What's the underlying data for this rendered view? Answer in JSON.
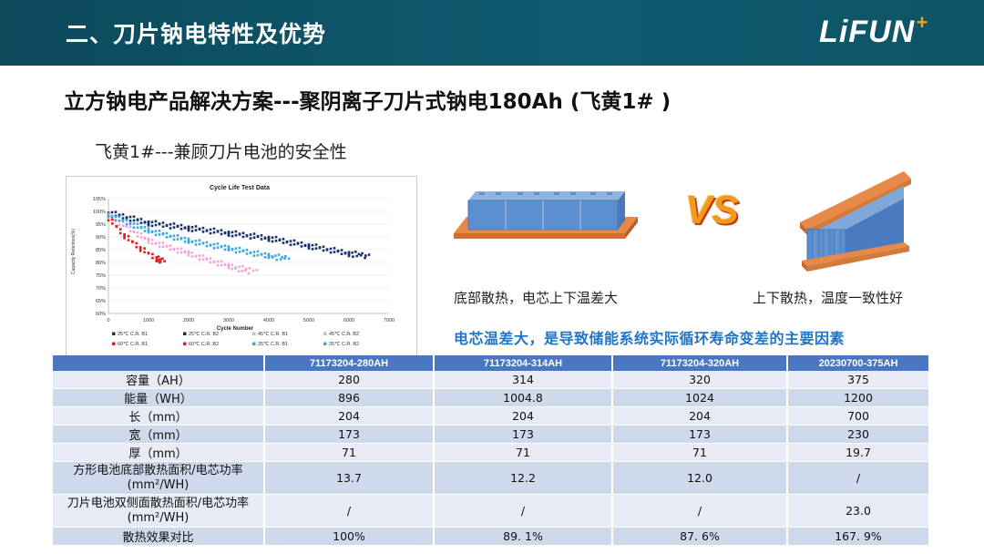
{
  "header": {
    "title": "二、刀片钠电特性及优势",
    "logo_text": "LiFUN",
    "logo_plus": "+"
  },
  "main_title": "立方钠电产品解决方案---聚阴离子刀片式钠电180Ah (飞黄1# )",
  "subtitle": "飞黄1#---兼顾刀片电池的安全性",
  "chart_data": {
    "type": "scatter",
    "title": "Cycle Life Test Data",
    "xlabel": "Cycle Number",
    "ylabel": "Capacity Retention(%)",
    "xlim": [
      0,
      7000
    ],
    "ylim": [
      60,
      105
    ],
    "xticks": [
      "0",
      "1000",
      "2000",
      "3000",
      "4000",
      "5000",
      "6000",
      "7000"
    ],
    "yticks": [
      "105%",
      "100%",
      "95%",
      "90%",
      "85%",
      "80%",
      "75%",
      "70%",
      "65%",
      "60%"
    ],
    "legend_position": "bottom",
    "series": [
      {
        "name": "25℃ C.R. B1",
        "color": "#1b2f6b",
        "x": [
          0,
          1000,
          2000,
          3000,
          4000,
          5000,
          6000,
          6500
        ],
        "y": [
          100,
          96,
          94,
          92,
          90,
          87,
          84,
          83
        ]
      },
      {
        "name": "25℃ C.R. B2",
        "color": "#1b2f6b",
        "x": [
          0,
          1000,
          2000,
          3000,
          4000,
          5000,
          6000,
          6400
        ],
        "y": [
          99,
          95,
          93,
          91,
          89,
          86,
          83,
          82
        ]
      },
      {
        "name": "45℃ C.R. B1",
        "color": "#f2a6d2",
        "x": [
          0,
          1000,
          2000,
          3000,
          3700
        ],
        "y": [
          99,
          89,
          84,
          79,
          77
        ]
      },
      {
        "name": "45℃ C.R. B2",
        "color": "#f2a6d2",
        "x": [
          0,
          1000,
          2000,
          3000,
          3500
        ],
        "y": [
          98,
          88,
          83,
          78,
          76
        ]
      },
      {
        "name": "60℃ C.R. B1",
        "color": "#e21d1d",
        "x": [
          0,
          400,
          800,
          1200,
          1400
        ],
        "y": [
          98,
          91,
          86,
          82,
          81
        ]
      },
      {
        "name": "60℃ C.R. B2",
        "color": "#e21d1d",
        "x": [
          0,
          400,
          800,
          1200,
          1300
        ],
        "y": [
          97,
          90,
          85,
          81,
          80
        ]
      },
      {
        "name": "35℃ C.R. B1",
        "color": "#3ca9d9",
        "x": [
          0,
          1000,
          2000,
          3000,
          4000,
          4500
        ],
        "y": [
          99,
          93,
          89,
          86,
          83,
          82
        ]
      },
      {
        "name": "35℃ C.R. B2",
        "color": "#3ca9d9",
        "x": [
          0,
          1000,
          2000,
          3000,
          4000,
          4400
        ],
        "y": [
          98,
          92,
          88,
          85,
          82,
          81
        ]
      }
    ]
  },
  "compare": {
    "left_caption": "底部散热，电芯上下温差大",
    "right_caption": "上下散热，温度一致性好",
    "vs_text": "VS",
    "note": "电芯温差大，是导致储能系统实际循环寿命变差的主要因素"
  },
  "table": {
    "headers": [
      "",
      "71173204-280AH",
      "71173204-314AH",
      "71173204-320AH",
      "20230700-375AH"
    ],
    "rows": [
      {
        "label": "容量（AH）",
        "values": [
          "280",
          "314",
          "320",
          "375"
        ]
      },
      {
        "label": "能量（WH）",
        "values": [
          "896",
          "1004.8",
          "1024",
          "1200"
        ]
      },
      {
        "label": "长（mm）",
        "values": [
          "204",
          "204",
          "204",
          "700"
        ]
      },
      {
        "label": "宽（mm）",
        "values": [
          "173",
          "173",
          "173",
          "230"
        ]
      },
      {
        "label": "厚（mm）",
        "values": [
          "71",
          "71",
          "71",
          "19.7"
        ]
      },
      {
        "label": "方形电池底部散热面积/电芯功率",
        "label2": "(mm²/WH)",
        "values": [
          "13.7",
          "12.2",
          "12.0",
          "/"
        ]
      },
      {
        "label": "刀片电池双侧面散热面积/电芯功率",
        "label2": "(mm²/WH)",
        "values": [
          "/",
          "/",
          "/",
          "23.0"
        ]
      },
      {
        "label": "散热效果对比",
        "values": [
          "100%",
          "89. 1%",
          "87. 6%",
          "167. 9%"
        ]
      }
    ]
  }
}
